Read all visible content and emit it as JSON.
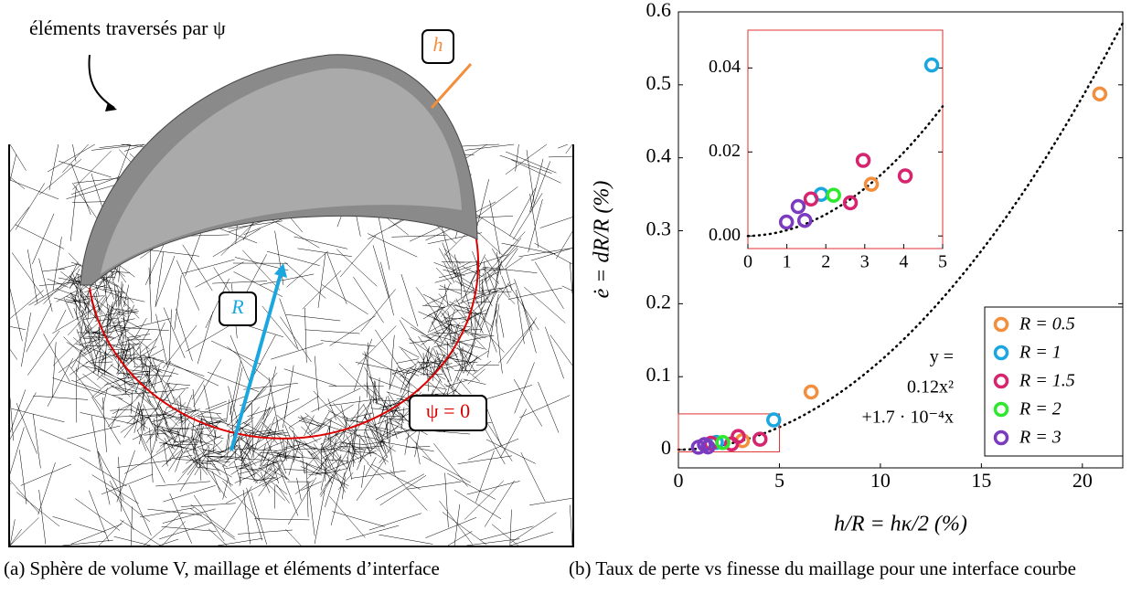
{
  "left": {
    "labels": {
      "elements": "éléments traversés par ψ",
      "h": "h",
      "R": "R",
      "psi": "ψ = 0"
    },
    "caption": "(a) Sphère de volume V, maillage et éléments d’interface"
  },
  "right": {
    "caption": "(b) Taux de perte vs finesse du maillage pour une interface courbe"
  },
  "chart_data": [
    {
      "type": "scatter",
      "x_label": "h/R = hκ/2 (%)",
      "y_label": "ė = dR/R (%)",
      "xlim": [
        0,
        22
      ],
      "ylim": [
        -0.025,
        0.6
      ],
      "xticks": [
        0,
        5,
        10,
        15,
        20
      ],
      "yticks": [
        0,
        0.1,
        0.2,
        0.3,
        0.4,
        0.5,
        0.6
      ],
      "legend": "lower right",
      "fit": {
        "a": 0.12,
        "b": 0.00017
      },
      "annotation": [
        "y =",
        "0.12x²",
        "+1.7 · 10⁻⁴x"
      ],
      "series": [
        {
          "name": "R = 0.5",
          "color": "#f28e3c",
          "x": [
            20.86,
            6.57,
            3.17
          ],
          "values": [
            0.4875,
            0.079,
            0.0123
          ]
        },
        {
          "name": "R = 1",
          "color": "#1aa7e0",
          "x": [
            4.72,
            1.88
          ],
          "values": [
            0.0407,
            0.0099
          ]
        },
        {
          "name": "R = 1.5",
          "color": "#d6246e",
          "x": [
            2.96,
            4.04,
            2.63,
            1.62
          ],
          "values": [
            0.018,
            0.0143,
            0.0079,
            0.0088
          ]
        },
        {
          "name": "R = 2",
          "color": "#2ee82e",
          "x": [
            2.2
          ],
          "values": [
            0.0097
          ]
        },
        {
          "name": "R = 3",
          "color": "#7b3bbf",
          "x": [
            0.99,
            1.29,
            1.46
          ],
          "values": [
            0.0033,
            0.007,
            0.0037
          ]
        }
      ]
    },
    {
      "type": "inset",
      "xlim": [
        0,
        5
      ],
      "ylim": [
        -0.003,
        0.049
      ],
      "xticks": [
        0,
        1,
        2,
        3,
        4,
        5
      ],
      "yticks": [
        {
          "value": 0,
          "label": "0.00"
        },
        0.02,
        0.04
      ]
    }
  ]
}
